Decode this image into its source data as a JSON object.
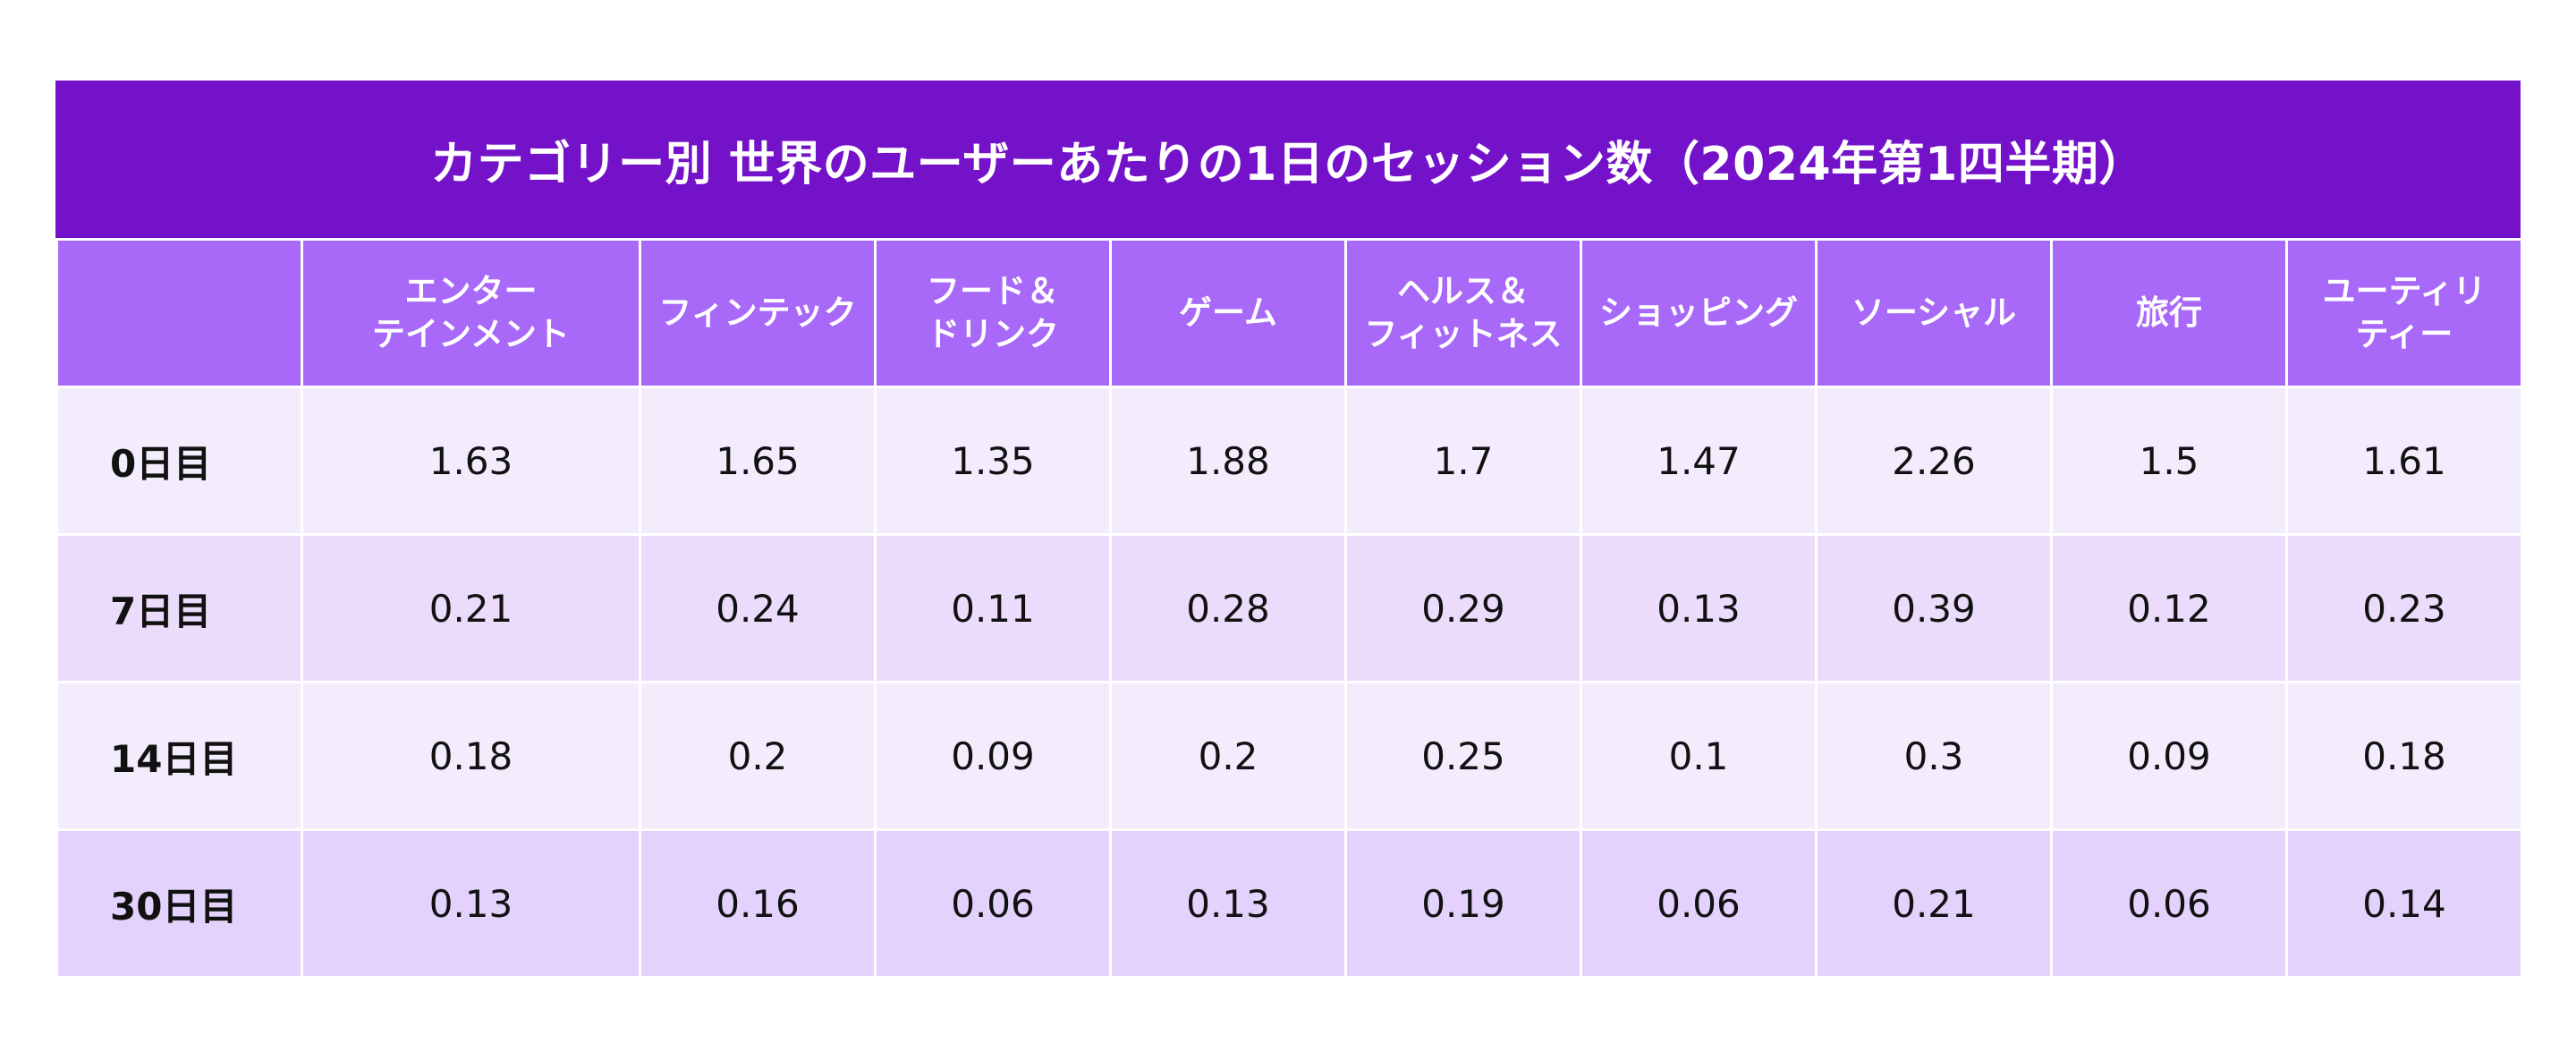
{
  "chart_data": {
    "type": "table",
    "title": "カテゴリー別 世界のユーザーあたりの1日のセッション数（2024年第1四半期）",
    "columns": [
      "",
      "エンター\nテインメント",
      "フィンテック",
      "フード＆\nドリンク",
      "ゲーム",
      "ヘルス＆\nフィットネス",
      "ショッピング",
      "ソーシャル",
      "旅行",
      "ユーティリ\nティー"
    ],
    "rows": [
      {
        "label": "0日目",
        "values": [
          "1.63",
          "1.65",
          "1.35",
          "1.88",
          "1.7",
          "1.47",
          "2.26",
          "1.5",
          "1.61"
        ]
      },
      {
        "label": "7日目",
        "values": [
          "0.21",
          "0.24",
          "0.11",
          "0.28",
          "0.29",
          "0.13",
          "0.39",
          "0.12",
          "0.23"
        ]
      },
      {
        "label": "14日目",
        "values": [
          "0.18",
          "0.2",
          "0.09",
          "0.2",
          "0.25",
          "0.1",
          "0.3",
          "0.09",
          "0.18"
        ]
      },
      {
        "label": "30日目",
        "values": [
          "0.13",
          "0.16",
          "0.06",
          "0.13",
          "0.19",
          "0.06",
          "0.21",
          "0.06",
          "0.14"
        ]
      }
    ]
  },
  "colors": {
    "title_bg": "#7412c9",
    "header_bg": "#a868f8",
    "row_light": "#f3ecfd",
    "row_mid": "#eadcfa",
    "row_dark": "#e3d2fc"
  }
}
